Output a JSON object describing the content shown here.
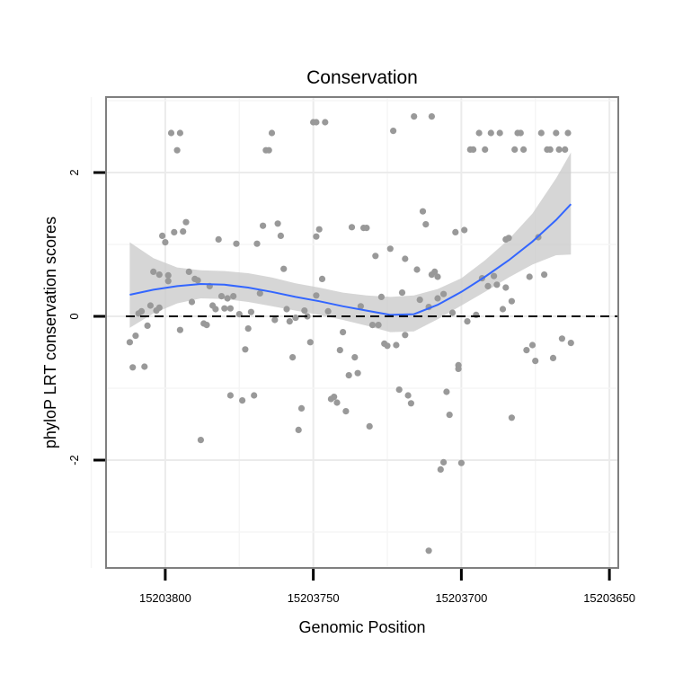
{
  "chart_data": {
    "type": "scatter",
    "title": "Conservation",
    "xlabel": "Genomic Position",
    "ylabel": "phyloP LRT conservation scores",
    "x_reversed": true,
    "xlim": [
      15203820,
      15203647
    ],
    "ylim": [
      -3.5,
      3.05
    ],
    "xticks": [
      15203800,
      15203750,
      15203700,
      15203650
    ],
    "yticks": [
      -2,
      0,
      2
    ],
    "grid": true,
    "reference_line": {
      "y": 0,
      "style": "dashed"
    },
    "colors": {
      "points": "#999999",
      "smooth_line": "#3366FF",
      "confidence_band": "#CCCCCC",
      "panel_background": "#FFFFFF",
      "grid": "#EBEBEB",
      "panel_border": "#7F7F7F"
    },
    "points": [
      {
        "x": 15203812,
        "y": -0.36
      },
      {
        "x": 15203811,
        "y": -0.71
      },
      {
        "x": 15203810,
        "y": -0.27
      },
      {
        "x": 15203809,
        "y": 0.04
      },
      {
        "x": 15203808,
        "y": 0.07
      },
      {
        "x": 15203807,
        "y": -0.7
      },
      {
        "x": 15203806,
        "y": -0.13
      },
      {
        "x": 15203805,
        "y": 0.15
      },
      {
        "x": 15203804,
        "y": 0.62
      },
      {
        "x": 15203803,
        "y": 0.08
      },
      {
        "x": 15203802,
        "y": 0.58
      },
      {
        "x": 15203801,
        "y": 1.12
      },
      {
        "x": 15203800,
        "y": 1.03
      },
      {
        "x": 15203799,
        "y": 0.57
      },
      {
        "x": 15203798,
        "y": 2.55
      },
      {
        "x": 15203797,
        "y": 1.17
      },
      {
        "x": 15203796,
        "y": 2.31
      },
      {
        "x": 15203795,
        "y": 2.55
      },
      {
        "x": 15203794,
        "y": 1.18
      },
      {
        "x": 15203793,
        "y": 1.31
      },
      {
        "x": 15203792,
        "y": 0.62
      },
      {
        "x": 15203791,
        "y": 0.2
      },
      {
        "x": 15203790,
        "y": 0.52
      },
      {
        "x": 15203789,
        "y": 0.5
      },
      {
        "x": 15203788,
        "y": -1.72
      },
      {
        "x": 15203787,
        "y": -0.1
      },
      {
        "x": 15203786,
        "y": -0.12
      },
      {
        "x": 15203785,
        "y": 0.42
      },
      {
        "x": 15203784,
        "y": 0.15
      },
      {
        "x": 15203783,
        "y": 0.1
      },
      {
        "x": 15203782,
        "y": 1.07
      },
      {
        "x": 15203781,
        "y": 0.28
      },
      {
        "x": 15203780,
        "y": 0.11
      },
      {
        "x": 15203779,
        "y": 0.25
      },
      {
        "x": 15203778,
        "y": -1.1
      },
      {
        "x": 15203777,
        "y": 0.28
      },
      {
        "x": 15203776,
        "y": 1.01
      },
      {
        "x": 15203775,
        "y": 0.03
      },
      {
        "x": 15203774,
        "y": -1.17
      },
      {
        "x": 15203773,
        "y": -0.46
      },
      {
        "x": 15203772,
        "y": -0.17
      },
      {
        "x": 15203771,
        "y": 0.06
      },
      {
        "x": 15203770,
        "y": -1.1
      },
      {
        "x": 15203769,
        "y": 1.01
      },
      {
        "x": 15203768,
        "y": 0.32
      },
      {
        "x": 15203767,
        "y": 1.26
      },
      {
        "x": 15203766,
        "y": 2.31
      },
      {
        "x": 15203765,
        "y": 2.31
      },
      {
        "x": 15203764,
        "y": 2.55
      },
      {
        "x": 15203763,
        "y": -0.05
      },
      {
        "x": 15203762,
        "y": 1.29
      },
      {
        "x": 15203761,
        "y": 1.12
      },
      {
        "x": 15203760,
        "y": 0.66
      },
      {
        "x": 15203759,
        "y": 0.1
      },
      {
        "x": 15203758,
        "y": -0.07
      },
      {
        "x": 15203757,
        "y": -0.57
      },
      {
        "x": 15203756,
        "y": -0.02
      },
      {
        "x": 15203755,
        "y": -1.58
      },
      {
        "x": 15203754,
        "y": -1.28
      },
      {
        "x": 15203753,
        "y": 0.08
      },
      {
        "x": 15203752,
        "y": 0.0
      },
      {
        "x": 15203751,
        "y": -0.36
      },
      {
        "x": 15203750,
        "y": 2.7
      },
      {
        "x": 15203749,
        "y": 2.7
      },
      {
        "x": 15203748,
        "y": 1.21
      },
      {
        "x": 15203747,
        "y": 0.52
      },
      {
        "x": 15203746,
        "y": 2.7
      },
      {
        "x": 15203745,
        "y": 0.07
      },
      {
        "x": 15203744,
        "y": -1.15
      },
      {
        "x": 15203743,
        "y": -1.12
      },
      {
        "x": 15203742,
        "y": -1.2
      },
      {
        "x": 15203741,
        "y": -0.47
      },
      {
        "x": 15203740,
        "y": -0.22
      },
      {
        "x": 15203739,
        "y": -1.32
      },
      {
        "x": 15203738,
        "y": -0.82
      },
      {
        "x": 15203737,
        "y": 1.24
      },
      {
        "x": 15203736,
        "y": -0.57
      },
      {
        "x": 15203735,
        "y": -0.79
      },
      {
        "x": 15203734,
        "y": 0.14
      },
      {
        "x": 15203733,
        "y": 1.23
      },
      {
        "x": 15203732,
        "y": 1.23
      },
      {
        "x": 15203731,
        "y": -1.53
      },
      {
        "x": 15203730,
        "y": -0.12
      },
      {
        "x": 15203729,
        "y": 0.84
      },
      {
        "x": 15203728,
        "y": -0.12
      },
      {
        "x": 15203727,
        "y": 0.27
      },
      {
        "x": 15203726,
        "y": -0.38
      },
      {
        "x": 15203725,
        "y": -0.41
      },
      {
        "x": 15203724,
        "y": 0.94
      },
      {
        "x": 15203723,
        "y": 2.58
      },
      {
        "x": 15203722,
        "y": -0.4
      },
      {
        "x": 15203721,
        "y": -1.02
      },
      {
        "x": 15203720,
        "y": 0.33
      },
      {
        "x": 15203719,
        "y": 0.8
      },
      {
        "x": 15203718,
        "y": -1.1
      },
      {
        "x": 15203717,
        "y": -1.21
      },
      {
        "x": 15203716,
        "y": 2.78
      },
      {
        "x": 15203715,
        "y": 0.65
      },
      {
        "x": 15203714,
        "y": 0.23
      },
      {
        "x": 15203713,
        "y": 1.46
      },
      {
        "x": 15203712,
        "y": 1.28
      },
      {
        "x": 15203711,
        "y": 0.13
      },
      {
        "x": 15203710,
        "y": 2.78
      },
      {
        "x": 15203709,
        "y": 0.62
      },
      {
        "x": 15203708,
        "y": 0.25
      },
      {
        "x": 15203707,
        "y": -2.13
      },
      {
        "x": 15203706,
        "y": -2.03
      },
      {
        "x": 15203705,
        "y": -1.05
      },
      {
        "x": 15203704,
        "y": -1.37
      },
      {
        "x": 15203703,
        "y": 0.05
      },
      {
        "x": 15203702,
        "y": 1.17
      },
      {
        "x": 15203701,
        "y": -0.73
      },
      {
        "x": 15203700,
        "y": -2.04
      },
      {
        "x": 15203699,
        "y": 1.2
      },
      {
        "x": 15203698,
        "y": -0.07
      },
      {
        "x": 15203697,
        "y": 2.32
      },
      {
        "x": 15203696,
        "y": 2.32
      },
      {
        "x": 15203695,
        "y": 0.02
      },
      {
        "x": 15203694,
        "y": 2.55
      },
      {
        "x": 15203693,
        "y": 0.53
      },
      {
        "x": 15203692,
        "y": 2.32
      },
      {
        "x": 15203691,
        "y": 0.42
      },
      {
        "x": 15203690,
        "y": 2.55
      },
      {
        "x": 15203689,
        "y": 0.56
      },
      {
        "x": 15203688,
        "y": 0.44
      },
      {
        "x": 15203687,
        "y": 2.55
      },
      {
        "x": 15203686,
        "y": 0.1
      },
      {
        "x": 15203685,
        "y": 1.07
      },
      {
        "x": 15203684,
        "y": 1.09
      },
      {
        "x": 15203683,
        "y": -1.41
      },
      {
        "x": 15203682,
        "y": 2.32
      },
      {
        "x": 15203681,
        "y": 2.55
      },
      {
        "x": 15203680,
        "y": 2.55
      },
      {
        "x": 15203679,
        "y": 2.32
      },
      {
        "x": 15203678,
        "y": -0.47
      },
      {
        "x": 15203677,
        "y": 0.55
      },
      {
        "x": 15203676,
        "y": -0.4
      },
      {
        "x": 15203675,
        "y": -0.62
      },
      {
        "x": 15203674,
        "y": 1.1
      },
      {
        "x": 15203673,
        "y": 2.55
      },
      {
        "x": 15203672,
        "y": 0.58
      },
      {
        "x": 15203671,
        "y": 2.32
      },
      {
        "x": 15203670,
        "y": 2.32
      },
      {
        "x": 15203669,
        "y": -0.58
      },
      {
        "x": 15203668,
        "y": 2.55
      },
      {
        "x": 15203667,
        "y": 2.32
      },
      {
        "x": 15203666,
        "y": -0.31
      },
      {
        "x": 15203665,
        "y": 2.32
      },
      {
        "x": 15203664,
        "y": 2.55
      },
      {
        "x": 15203663,
        "y": -0.37
      },
      {
        "x": 15203701,
        "y": -0.68
      },
      {
        "x": 15203719,
        "y": -0.26
      },
      {
        "x": 15203799,
        "y": 0.49
      },
      {
        "x": 15203778,
        "y": 0.11
      },
      {
        "x": 15203749,
        "y": 0.29
      },
      {
        "x": 15203685,
        "y": 0.4
      },
      {
        "x": 15203749,
        "y": 1.11
      },
      {
        "x": 15203708,
        "y": 0.55
      },
      {
        "x": 15203802,
        "y": 0.12
      },
      {
        "x": 15203795,
        "y": -0.19
      },
      {
        "x": 15203706,
        "y": 0.31
      },
      {
        "x": 15203683,
        "y": 0.21
      },
      {
        "x": 15203710,
        "y": 0.58
      },
      {
        "x": 15203711,
        "y": -3.26
      }
    ],
    "smooth": {
      "x": [
        15203812,
        15203804,
        15203796,
        15203788,
        15203780,
        15203772,
        15203764,
        15203756,
        15203748,
        15203740,
        15203732,
        15203724,
        15203716,
        15203708,
        15203700,
        15203692,
        15203684,
        15203676,
        15203668,
        15203663
      ],
      "y": [
        0.3,
        0.37,
        0.42,
        0.45,
        0.44,
        0.4,
        0.34,
        0.27,
        0.21,
        0.14,
        0.08,
        0.02,
        0.03,
        0.16,
        0.34,
        0.55,
        0.78,
        1.04,
        1.34,
        1.56
      ],
      "lower": [
        -0.16,
        0.04,
        0.18,
        0.25,
        0.24,
        0.2,
        0.14,
        0.08,
        0.02,
        -0.05,
        -0.13,
        -0.22,
        -0.21,
        -0.04,
        0.15,
        0.34,
        0.54,
        0.72,
        0.85,
        0.86
      ],
      "upper": [
        1.03,
        0.81,
        0.68,
        0.64,
        0.63,
        0.6,
        0.54,
        0.46,
        0.4,
        0.33,
        0.29,
        0.27,
        0.29,
        0.38,
        0.53,
        0.78,
        1.07,
        1.43,
        1.92,
        2.28
      ]
    }
  }
}
